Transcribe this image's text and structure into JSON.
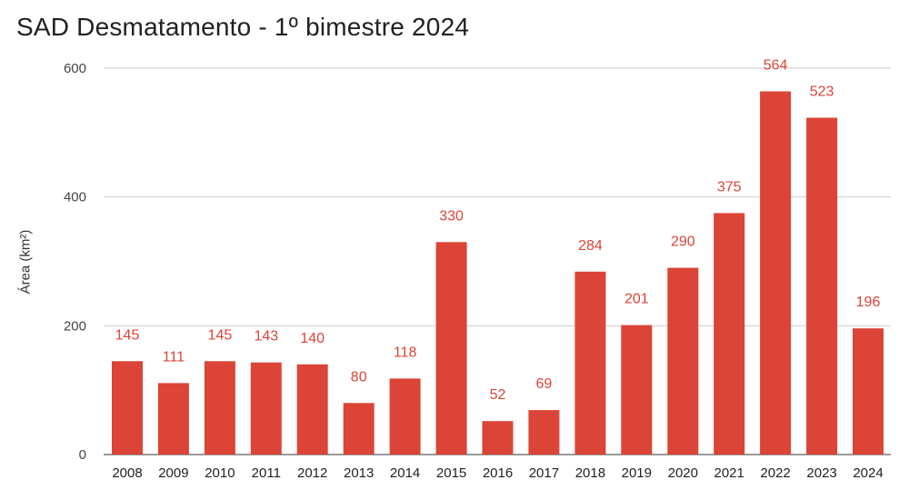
{
  "chart_data": {
    "type": "bar",
    "title": "SAD Desmatamento - 1º bimestre 2024",
    "xlabel": "",
    "ylabel": "Área (km²)",
    "ylim": [
      0,
      600
    ],
    "yticks": [
      0,
      200,
      400,
      600
    ],
    "grid": true,
    "legend": "none",
    "categories": [
      "2008",
      "2009",
      "2010",
      "2011",
      "2012",
      "2013",
      "2014",
      "2015",
      "2016",
      "2017",
      "2018",
      "2019",
      "2020",
      "2021",
      "2022",
      "2023",
      "2024"
    ],
    "values": [
      145,
      111,
      145,
      143,
      140,
      80,
      118,
      330,
      52,
      69,
      284,
      201,
      290,
      375,
      564,
      523,
      196
    ],
    "colors": {
      "bar": "#db4437",
      "data_label": "#db4437",
      "grid": "#cccccc",
      "axis_text": "#444444"
    }
  }
}
